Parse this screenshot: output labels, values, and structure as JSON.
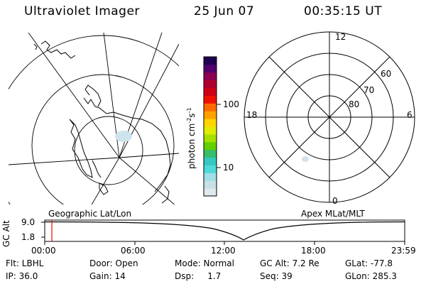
{
  "header": {
    "title": "Ultraviolet Imager",
    "date": "25 Jun 07",
    "time": "00:35:15 UT"
  },
  "colorbar": {
    "label": "photon cm",
    "label_sup1": "-2",
    "label_s": "s",
    "label_sup2": "-1",
    "tick_100": "100",
    "tick_10": "10",
    "colors": [
      "#dfe9ee",
      "#c7dfe6",
      "#9fdfe6",
      "#4fd9d9",
      "#34c8c0",
      "#38bd6a",
      "#63d100",
      "#a6e000",
      "#e0ec00",
      "#ffd500",
      "#ffa200",
      "#ff6a00",
      "#f01000",
      "#ce0018",
      "#b0002e",
      "#8c0052",
      "#520070",
      "#1f0050"
    ]
  },
  "left_panel": {
    "caption": "Geographic Lat/Lon"
  },
  "right_panel": {
    "caption": "Apex MLat/MLT",
    "mlt_labels": {
      "top": "12",
      "left": "18",
      "right": "6",
      "bottom": "0"
    },
    "lat_labels": [
      "60",
      "70",
      "80"
    ]
  },
  "timeline": {
    "y_axis_label": "GC Alt",
    "y_ticks": [
      "9.0",
      "1.8"
    ],
    "x_ticks": [
      "00:00",
      "06:00",
      "12:00",
      "18:00",
      "23:59"
    ],
    "marker_color": "#ff0000"
  },
  "info": {
    "row1": [
      "Flt: LBHL",
      "Door: Open",
      "Mode: Normal",
      "GC Alt: 7.2 Re",
      "GLat: -77.8"
    ],
    "row2": [
      "IP: 36.0",
      "Gain: 14",
      "Dsp:     1.7",
      "Seq: 39",
      "GLon: 285.3"
    ]
  }
}
